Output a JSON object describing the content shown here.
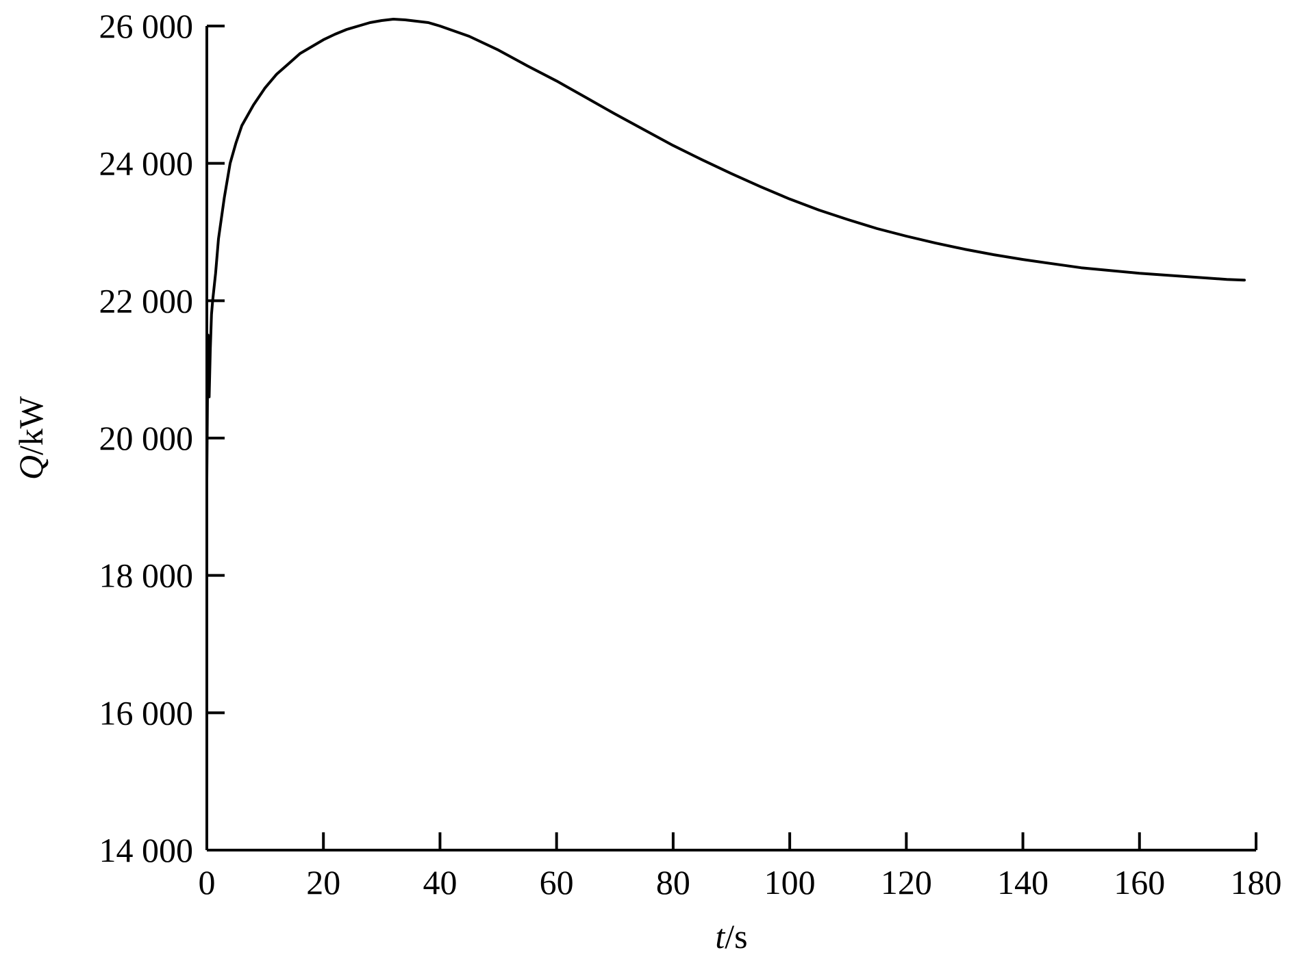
{
  "chart_data": {
    "type": "line",
    "title": "",
    "xlabel": {
      "var": "t",
      "unit": "/s"
    },
    "ylabel": {
      "var": "Q",
      "unit": "/kW"
    },
    "xlim": [
      0,
      180
    ],
    "ylim": [
      14000,
      26000
    ],
    "xticks": [
      0,
      20,
      40,
      60,
      80,
      100,
      120,
      140,
      160,
      180
    ],
    "yticks": [
      14000,
      16000,
      18000,
      20000,
      22000,
      24000,
      26000
    ],
    "xtick_labels": [
      "0",
      "20",
      "40",
      "60",
      "80",
      "100",
      "120",
      "140",
      "160",
      "180"
    ],
    "ytick_labels": [
      "14 000",
      "16 000",
      "18 000",
      "20 000",
      "22 000",
      "24 000",
      "26 000"
    ],
    "grid": false,
    "line_color": "#000000",
    "series": [
      {
        "x": [
          0,
          0.2,
          0.4,
          0.6,
          0.8,
          1,
          1.5,
          2,
          3,
          4,
          5,
          6,
          8,
          10,
          12,
          14,
          16,
          18,
          20,
          22,
          24,
          26,
          28,
          30,
          32,
          34,
          36,
          38,
          40,
          45,
          50,
          55,
          60,
          65,
          70,
          75,
          80,
          85,
          90,
          95,
          100,
          105,
          110,
          115,
          120,
          125,
          130,
          135,
          140,
          145,
          150,
          155,
          160,
          165,
          170,
          175,
          178
        ],
        "y": [
          19400,
          21500,
          20600,
          21300,
          21800,
          22000,
          22400,
          22900,
          23500,
          24000,
          24300,
          24550,
          24850,
          25100,
          25300,
          25450,
          25600,
          25700,
          25800,
          25880,
          25950,
          26000,
          26050,
          26080,
          26100,
          26090,
          26070,
          26050,
          26000,
          25850,
          25650,
          25420,
          25200,
          24960,
          24720,
          24490,
          24260,
          24050,
          23850,
          23660,
          23480,
          23320,
          23180,
          23050,
          22940,
          22840,
          22750,
          22670,
          22600,
          22540,
          22480,
          22440,
          22400,
          22370,
          22340,
          22310,
          22300
        ]
      }
    ]
  }
}
